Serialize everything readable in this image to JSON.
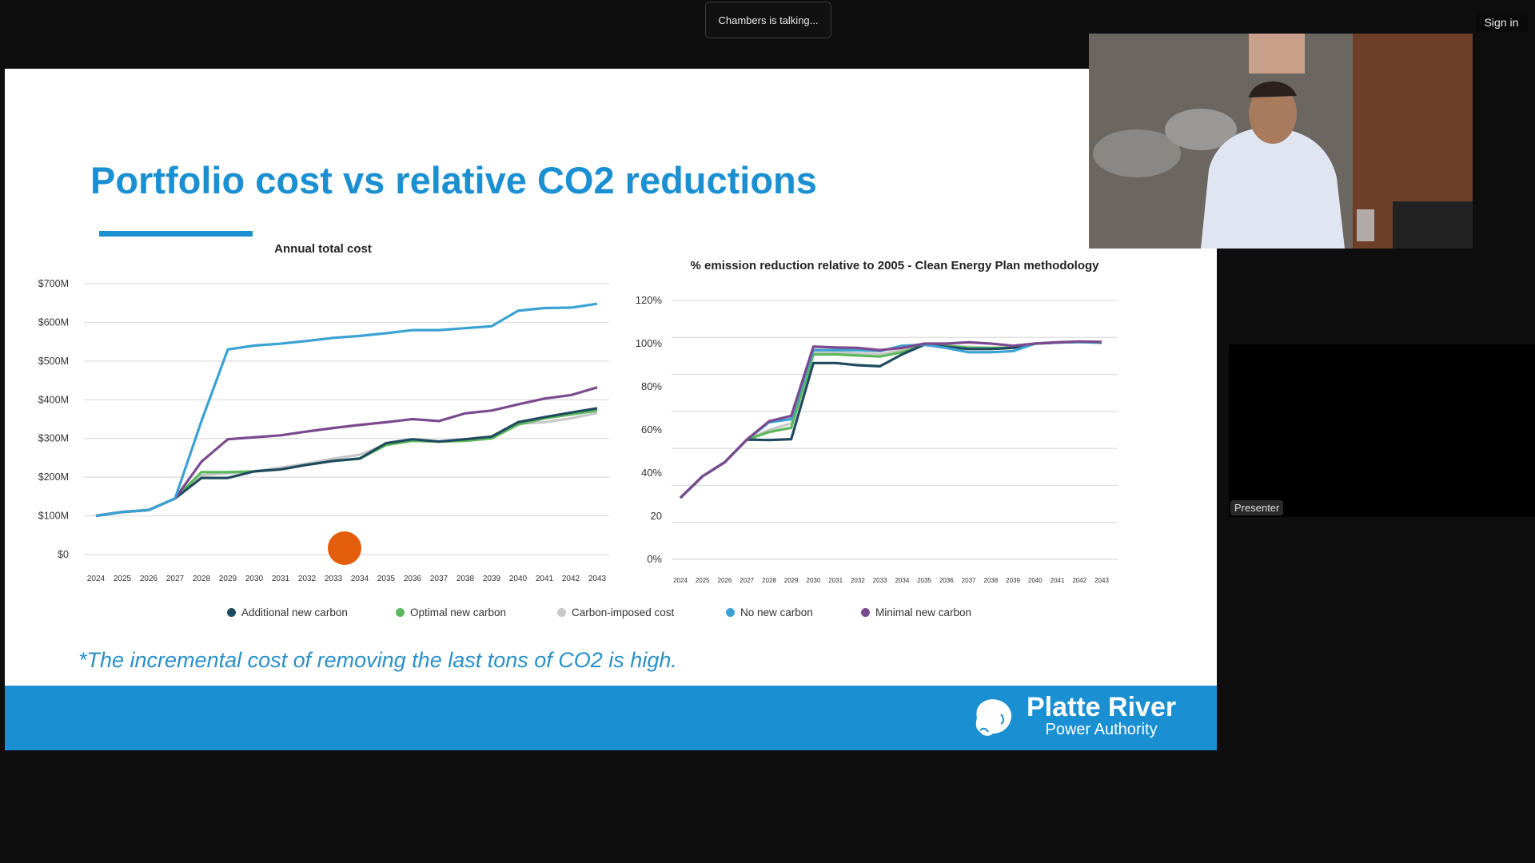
{
  "meeting": {
    "speaking_indicator": "Chambers is talking...",
    "sign_in_label": "Sign in",
    "presenter_label": "Presenter"
  },
  "slide": {
    "title": "Portfolio cost vs relative CO2 reductions",
    "footnote": "*The incremental cost of removing the last tons of CO2 is high.",
    "logo": {
      "name": "Platte River",
      "subtitle": "Power Authority"
    },
    "accent_color": "#1a8fd1",
    "legend": [
      {
        "label": "Additional new carbon",
        "color": "#1f4a5f"
      },
      {
        "label": "Optimal new carbon",
        "color": "#5cb85c"
      },
      {
        "label": "Carbon-imposed cost",
        "color": "#c8c8c8"
      },
      {
        "label": "No new carbon",
        "color": "#3aa2d2"
      },
      {
        "label": "Minimal new carbon",
        "color": "#7b4a8e"
      }
    ]
  },
  "chart_data": [
    {
      "type": "line",
      "title": "Annual total cost",
      "categories": [
        "2024",
        "2025",
        "2026",
        "2027",
        "2028",
        "2029",
        "2030",
        "2031",
        "2032",
        "2033",
        "2034",
        "2035",
        "2036",
        "2037",
        "2038",
        "2039",
        "2040",
        "2041",
        "2042",
        "2043"
      ],
      "ylim": [
        0,
        700
      ],
      "yticks": [
        0,
        100,
        200,
        300,
        400,
        500,
        600,
        700
      ],
      "ytick_labels": [
        "$0",
        "$100M",
        "$200M",
        "$300M",
        "$400M",
        "$500M",
        "$600M",
        "$700M"
      ],
      "grid": true,
      "legend_placement": "bottom",
      "series": [
        {
          "name": "Carbon-imposed cost",
          "color": "#c8c8c8",
          "values": [
            100,
            110,
            115,
            145,
            205,
            210,
            215,
            225,
            235,
            248,
            258,
            285,
            294,
            292,
            295,
            302,
            338,
            342,
            352,
            366
          ]
        },
        {
          "name": "Optimal new carbon",
          "color": "#5cb85c",
          "values": [
            100,
            110,
            115,
            145,
            213,
            213,
            215,
            220,
            232,
            242,
            248,
            283,
            294,
            292,
            294,
            300,
            336,
            352,
            362,
            372
          ]
        },
        {
          "name": "Additional new carbon",
          "color": "#1f4a5f",
          "values": [
            100,
            110,
            115,
            145,
            198,
            198,
            215,
            220,
            232,
            242,
            248,
            288,
            298,
            292,
            298,
            305,
            342,
            355,
            367,
            378
          ]
        },
        {
          "name": "Minimal new carbon",
          "color": "#7b4a8e",
          "values": [
            100,
            110,
            115,
            145,
            240,
            298,
            303,
            308,
            318,
            327,
            335,
            342,
            350,
            345,
            365,
            372,
            388,
            403,
            412,
            432
          ]
        },
        {
          "name": "No new carbon",
          "color": "#3aa2d2",
          "values": [
            100,
            110,
            115,
            145,
            345,
            530,
            540,
            545,
            552,
            560,
            565,
            572,
            580,
            580,
            585,
            590,
            630,
            637,
            638,
            648
          ]
        }
      ]
    },
    {
      "type": "line",
      "title": "% emission reduction relative to 2005 - Clean Energy Plan methodology",
      "categories": [
        "2024",
        "2025",
        "2026",
        "2027",
        "2028",
        "2029",
        "2030",
        "2031",
        "2032",
        "2033",
        "2034",
        "2035",
        "2036",
        "2037",
        "2038",
        "2039",
        "2040",
        "2041",
        "2042",
        "2043"
      ],
      "ylim": [
        0,
        120
      ],
      "yticks": [
        0,
        20,
        40,
        60,
        80,
        100,
        120
      ],
      "ytick_labels": [
        "0%",
        "20",
        "40%",
        "60%",
        "80%",
        "100%",
        "120%"
      ],
      "grid": true,
      "legend_placement": "bottom",
      "series": [
        {
          "name": "Carbon-imposed cost",
          "color": "#c8c8c8",
          "values": [
            28.5,
            38.5,
            45,
            55.5,
            60,
            63,
            96,
            96,
            95.5,
            95,
            97,
            99.5,
            99,
            98.5,
            98,
            98,
            100,
            100.5,
            100.8,
            100.5
          ]
        },
        {
          "name": "Optimal new carbon",
          "color": "#5cb85c",
          "values": [
            28.5,
            38.5,
            45,
            55.5,
            59,
            61,
            95,
            95,
            94.5,
            94,
            96,
            99.5,
            99,
            98,
            98,
            98,
            100,
            100.5,
            100.8,
            100.3
          ]
        },
        {
          "name": "Additional new carbon",
          "color": "#1f4a5f",
          "values": [
            28.5,
            38.5,
            45,
            55.5,
            55.3,
            55.7,
            91,
            91,
            90,
            89.5,
            95,
            99.5,
            98.5,
            97.5,
            97.5,
            98,
            100,
            100.5,
            100.8,
            100.6
          ]
        },
        {
          "name": "No new carbon",
          "color": "#3aa2d2",
          "values": [
            28.5,
            38.5,
            45,
            55.5,
            63.5,
            65,
            97,
            97,
            97,
            96.5,
            99,
            99.5,
            98,
            96,
            96,
            96.5,
            100,
            100.5,
            100.8,
            100.5
          ]
        },
        {
          "name": "Minimal new carbon",
          "color": "#7b4a8e",
          "values": [
            28.5,
            38.5,
            45,
            55.5,
            64,
            66.5,
            98.6,
            98.2,
            98,
            97,
            98,
            100,
            100,
            100.6,
            100,
            99,
            100,
            100.6,
            101,
            100.8
          ]
        }
      ]
    }
  ]
}
